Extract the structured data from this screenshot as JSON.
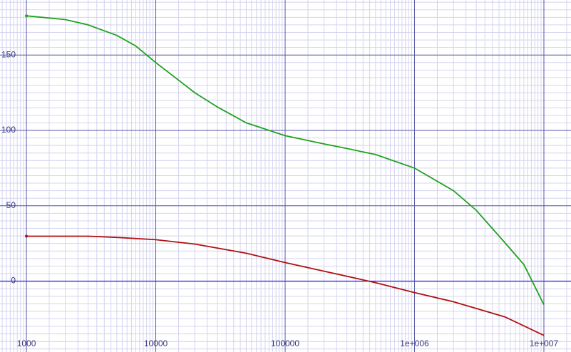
{
  "chart_data": {
    "type": "line",
    "xscale": "log",
    "grid": true,
    "minor_grid": true,
    "xlim": [
      625,
      16200000
    ],
    "ylim": [
      -47,
      186.5
    ],
    "xticks": [
      1000,
      10000,
      100000,
      {
        "value": 1000000,
        "label": "1e+006"
      },
      {
        "value": 10000000,
        "label": "1e+007"
      }
    ],
    "yticks": [
      0,
      50,
      100,
      150
    ],
    "series": [
      {
        "color": "#1fa21f",
        "x": [
          1000,
          2000,
          3000,
          5000,
          7000,
          10000,
          20000,
          30000,
          50000,
          100000,
          200000,
          300000,
          500000,
          1000000,
          2000000,
          3000000,
          5000000,
          7000000,
          10000000
        ],
        "values": [
          176,
          173.5,
          170,
          163,
          156,
          145,
          125,
          115.5,
          105,
          96.5,
          91,
          88,
          84,
          75,
          60,
          47,
          25.5,
          11,
          -15.6
        ]
      },
      {
        "color": "#b01010",
        "x": [
          1000,
          3000,
          5000,
          10000,
          20000,
          50000,
          100000,
          200000,
          500000,
          1000000,
          2000000,
          5000000,
          10000000
        ],
        "values": [
          29.8,
          29.8,
          29,
          27.5,
          24.6,
          18.5,
          12.3,
          6.6,
          -1,
          -7.6,
          -13.7,
          -23.7,
          -36
        ]
      }
    ]
  }
}
